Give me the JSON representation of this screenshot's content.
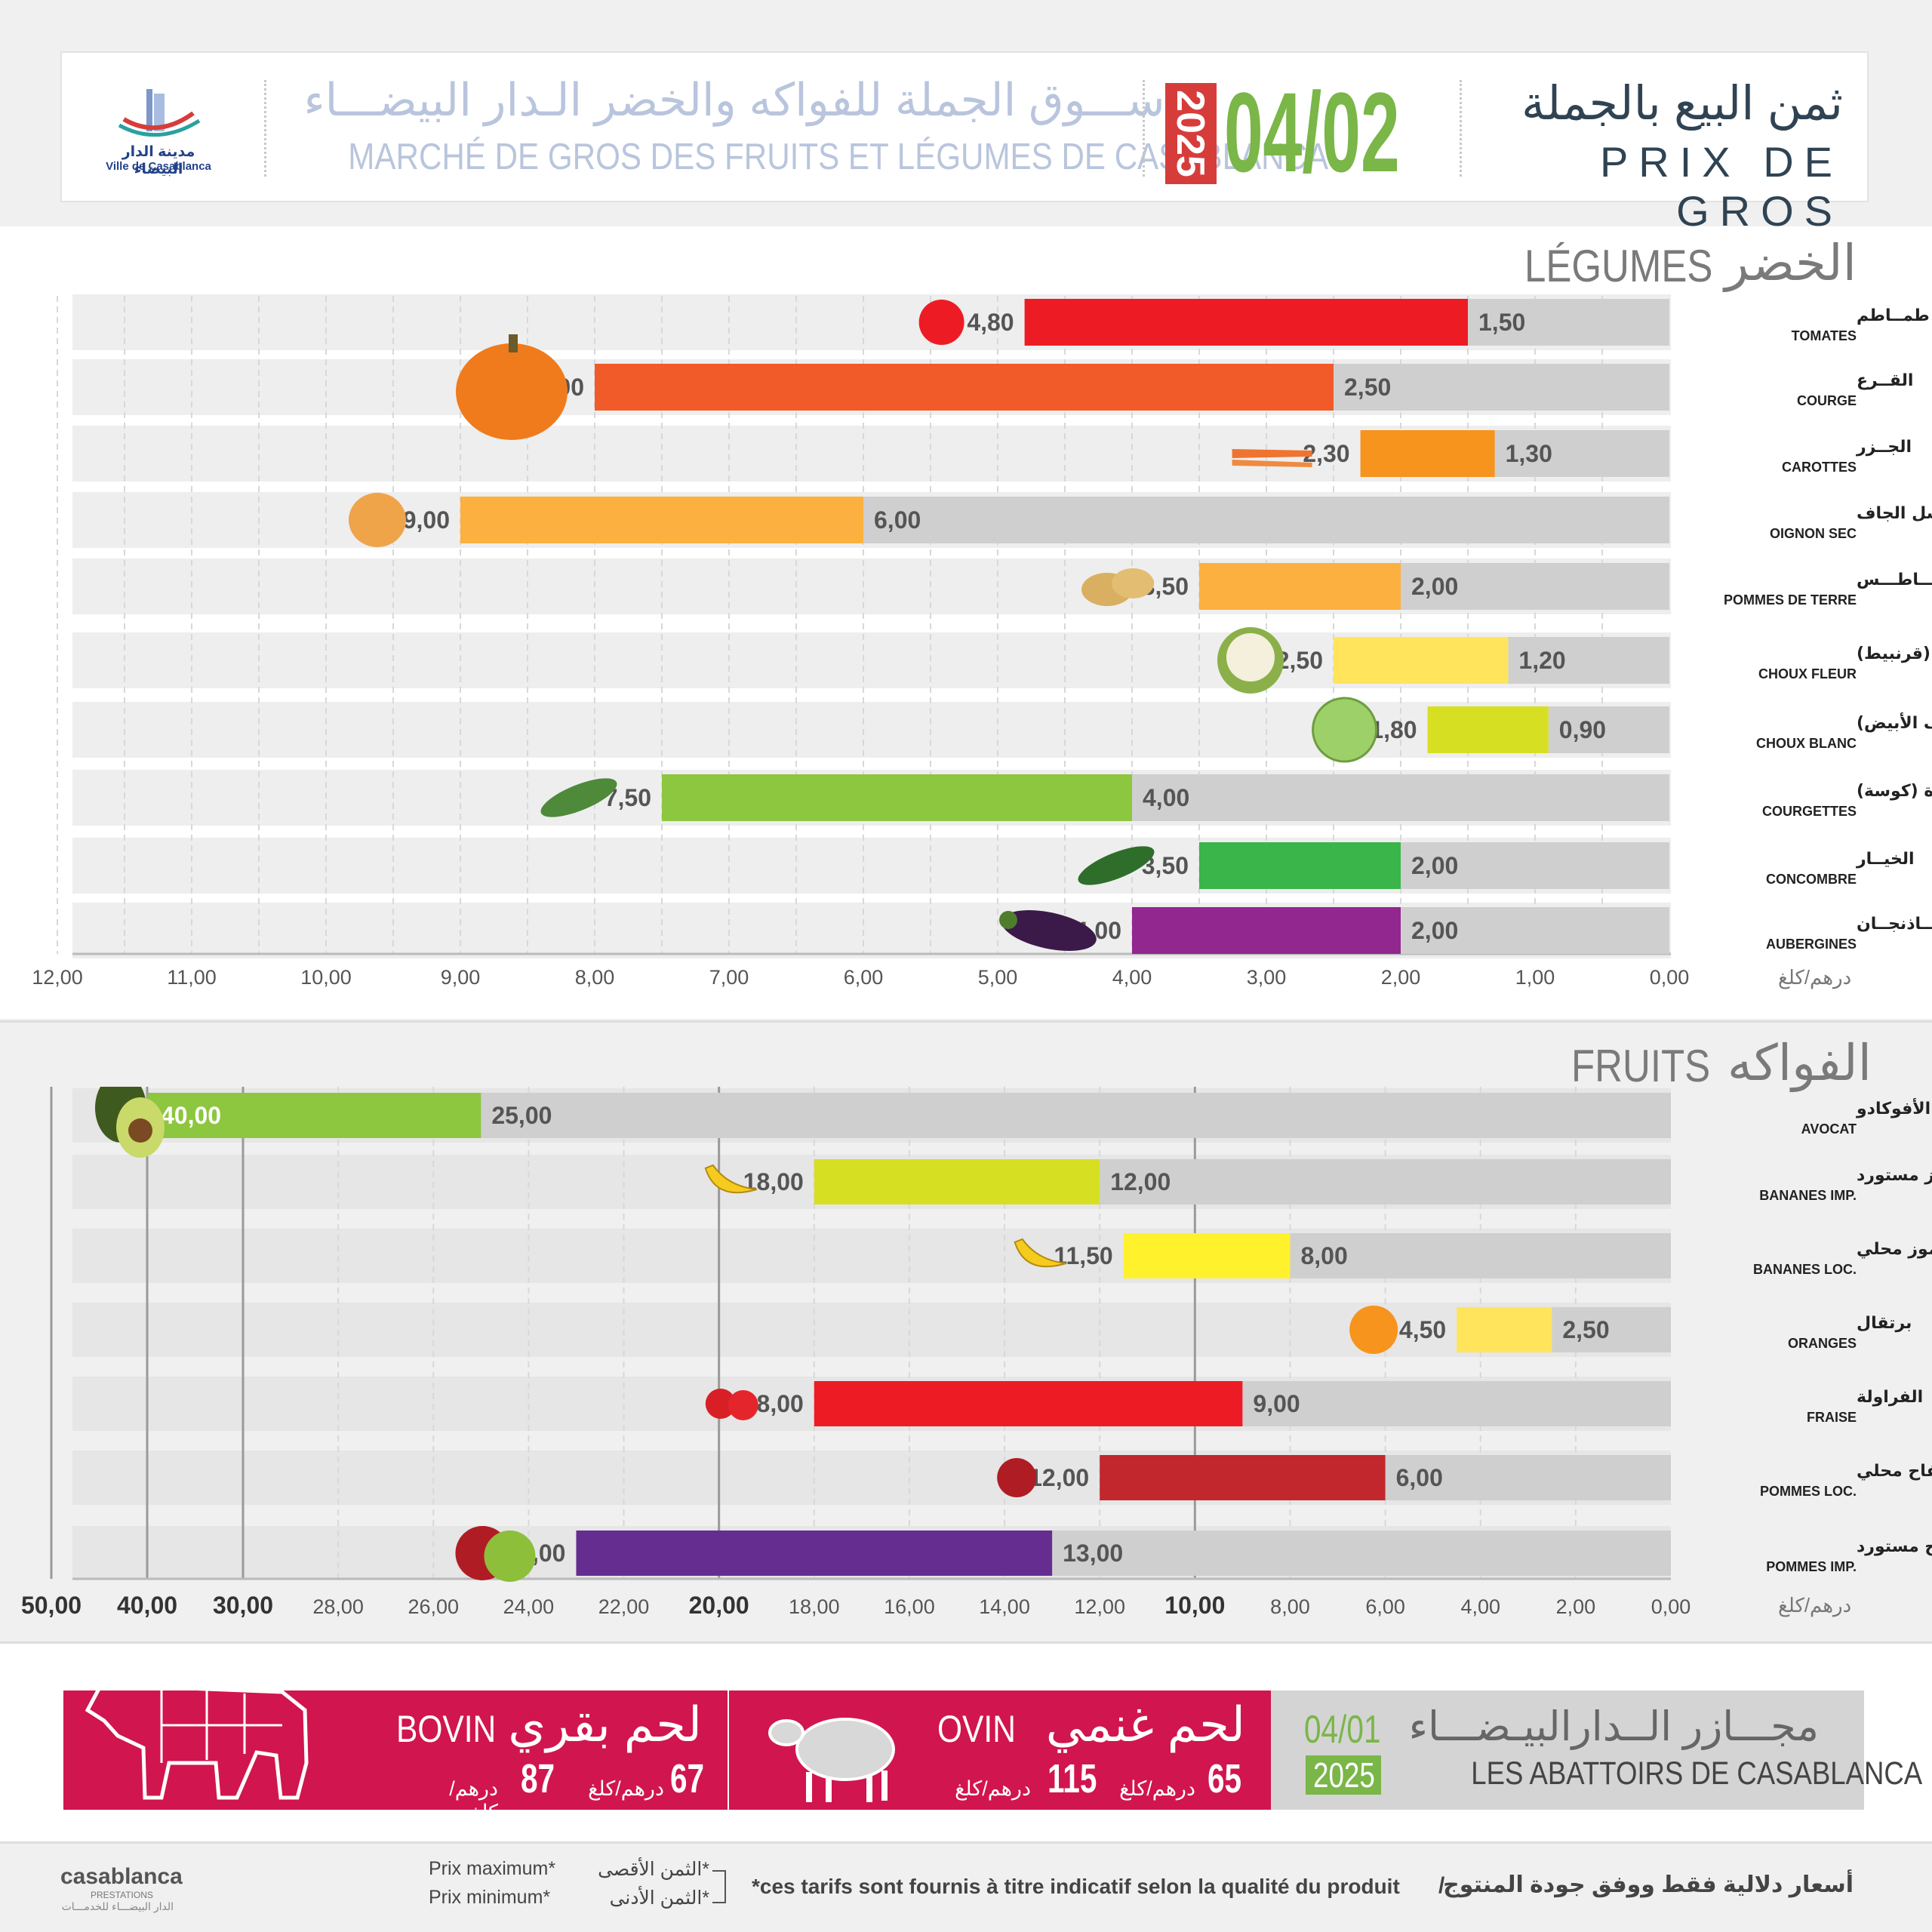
{
  "header": {
    "logo_ar": "مدينة الدار البيضاء",
    "logo_fr": "Ville de Casablanca",
    "market_ar": "ســـوق الجملة للفواكه والخضر الـدار البيضـــاء",
    "market_fr": "MARCHÉ DE GROS DES FRUITS ET LÉGUMES DE CASABLANCA",
    "year": "2025",
    "date": "04/02",
    "price_ar": "ثمن البيع بالجملة",
    "price_fr": "PRIX DE GROS",
    "colors": {
      "green": "#7ab648",
      "red": "#d63d3a",
      "navy": "#2f4353"
    }
  },
  "unit_label": "درهم/كلغ",
  "chart_data": [
    {
      "type": "bar",
      "title_fr": "LÉGUMES",
      "title_ar": "الخضر",
      "orientation": "horizontal-reversed",
      "xlim": [
        0,
        12
      ],
      "ticks": [
        "0,00",
        "1,00",
        "2,00",
        "3,00",
        "4,00",
        "5,00",
        "6,00",
        "7,00",
        "8,00",
        "9,00",
        "10,00",
        "11,00",
        "12,00"
      ],
      "xlabel": "درهم/كلغ",
      "series": [
        {
          "name": "Prix minimum"
        },
        {
          "name": "Prix maximum"
        }
      ],
      "rows": [
        {
          "ar": "طمــاطم",
          "fr": "TOMATES",
          "min": 1.5,
          "max": 4.8,
          "min_label": "1,50",
          "max_label": "4,80",
          "color": "#ed1c24",
          "icon": "tomato-icon"
        },
        {
          "ar": "القــرع",
          "fr": "COURGE",
          "min": 2.5,
          "max": 8.0,
          "min_label": "2,50",
          "max_label": "8,00",
          "color": "#f15a29",
          "icon": "pumpkin-icon"
        },
        {
          "ar": "الجــزر",
          "fr": "CAROTTES",
          "min": 1.3,
          "max": 2.3,
          "min_label": "1,30",
          "max_label": "2,30",
          "color": "#f7941d",
          "icon": "carrot-icon"
        },
        {
          "ar": "البصل الجاف",
          "fr": "OIGNON SEC",
          "min": 6.0,
          "max": 9.0,
          "min_label": "6,00",
          "max_label": "9,00",
          "color": "#fbb040",
          "icon": "onion-icon"
        },
        {
          "ar": "بطـــاطـــس",
          "fr": "POMMES DE TERRE",
          "min": 2.0,
          "max": 3.5,
          "min_label": "2,00",
          "max_label": "3,50",
          "color": "#fbb040",
          "icon": "potato-icon"
        },
        {
          "ar": "شفلـور (قرنبيط)",
          "fr": "CHOUX FLEUR",
          "min": 1.2,
          "max": 2.5,
          "min_label": "1,20",
          "max_label": "2,50",
          "color": "#ffe45c",
          "icon": "cauliflower-icon"
        },
        {
          "ar": "كرومب (الملفوف الأبيض)",
          "fr": "CHOUX BLANC",
          "min": 0.9,
          "max": 1.8,
          "min_label": "0,90",
          "max_label": "1,80",
          "color": "#d7df23",
          "icon": "cabbage-icon"
        },
        {
          "ar": "قرعة خضرة (كوسة)",
          "fr": "COURGETTES",
          "min": 4.0,
          "max": 7.5,
          "min_label": "4,00",
          "max_label": "7,50",
          "color": "#8dc63f",
          "icon": "zucchini-icon"
        },
        {
          "ar": "الخيــار",
          "fr": "CONCOMBRE",
          "min": 2.0,
          "max": 3.5,
          "min_label": "2,00",
          "max_label": "3,50",
          "color": "#39b54a",
          "icon": "cucumber-icon"
        },
        {
          "ar": "البــاذنجــان",
          "fr": "AUBERGINES",
          "min": 2.0,
          "max": 4.0,
          "min_label": "2,00",
          "max_label": "4,00",
          "color": "#92278f",
          "icon": "eggplant-icon"
        }
      ]
    },
    {
      "type": "bar",
      "title_fr": "FRUITS",
      "title_ar": "الفواكه",
      "orientation": "horizontal-reversed",
      "xlim": [
        0,
        50
      ],
      "ticks": [
        "0,00",
        "2,00",
        "4,00",
        "6,00",
        "8,00",
        "10,00",
        "12,00",
        "14,00",
        "16,00",
        "18,00",
        "20,00",
        "22,00",
        "24,00",
        "26,00",
        "28,00",
        "30,00",
        "40,00",
        "50,00"
      ],
      "xlabel": "درهم/كلغ",
      "series": [
        {
          "name": "Prix minimum"
        },
        {
          "name": "Prix maximum"
        }
      ],
      "rows": [
        {
          "ar": "الأفوكادو",
          "fr": "AVOCAT",
          "min": 25.0,
          "max": 40.0,
          "min_label": "25,00",
          "max_label": "40,00",
          "color": "#8dc63f",
          "icon": "avocado-icon"
        },
        {
          "ar": "موز مستورد",
          "fr": "BANANES IMP.",
          "min": 12.0,
          "max": 18.0,
          "min_label": "12,00",
          "max_label": "18,00",
          "color": "#d7df23",
          "icon": "banana-bunch-icon"
        },
        {
          "ar": "موز محلي",
          "fr": "BANANES LOC.",
          "min": 8.0,
          "max": 11.5,
          "min_label": "8,00",
          "max_label": "11,50",
          "color": "#fff22d",
          "icon": "banana-icon"
        },
        {
          "ar": "برتقال",
          "fr": "ORANGES",
          "min": 2.5,
          "max": 4.5,
          "min_label": "2,50",
          "max_label": "4,50",
          "color": "#ffe45c",
          "icon": "orange-icon"
        },
        {
          "ar": "الفراولة",
          "fr": "FRAISE",
          "min": 9.0,
          "max": 18.0,
          "min_label": "9,00",
          "max_label": "18,00",
          "color": "#ed1c24",
          "icon": "strawberry-icon"
        },
        {
          "ar": "تفاح محلي",
          "fr": "POMMES LOC.",
          "min": 6.0,
          "max": 12.0,
          "min_label": "6,00",
          "max_label": "12,00",
          "color": "#c1272d",
          "icon": "apple-red-icon"
        },
        {
          "ar": "تفاح مستورد",
          "fr": "POMMES IMP.",
          "min": 13.0,
          "max": 23.0,
          "min_label": "13,00",
          "max_label": "23,00",
          "color": "#662d91",
          "icon": "apple-mix-icon"
        }
      ]
    }
  ],
  "meat": {
    "bovin_fr": "BOVIN",
    "bovin_ar": "لحم بقري",
    "bovin_min": "67",
    "bovin_max": "87",
    "ovin_fr": "OVIN",
    "ovin_ar": "لحم غنمي",
    "ovin_min": "65",
    "ovin_max": "115",
    "unit": "درهم/كلغ",
    "abattoirs_ar": "مجـــازر الــدارالبيـضـــاء",
    "abattoirs_fr": "LES ABATTOIRS DE CASABLANCA",
    "date": "04/01",
    "year": "2025",
    "colors": {
      "band": "#d1154e",
      "gray": "#d4d4d4"
    }
  },
  "footer": {
    "brand": "casablanca",
    "brand_sub": "PRESTATIONS",
    "brand_ar": "الدار البيضـــاء للخدمـــات",
    "legend_max_fr": "Prix maximum*",
    "legend_min_fr": "Prix minimum*",
    "legend_max_ar": "*الثمن الأقصى",
    "legend_min_ar": "*الثمن الأدنى",
    "note_fr": "*ces tarifs sont fournis à titre indicatif selon la qualité du produit",
    "note_ar": "أسعار دلالية فقط ووفق جودة المنتوج"
  }
}
